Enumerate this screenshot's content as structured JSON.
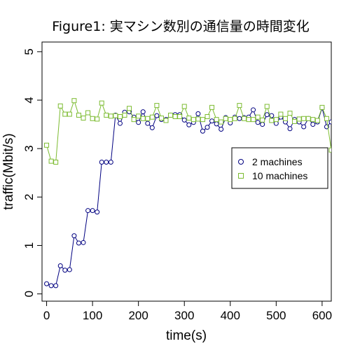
{
  "chart_data": {
    "type": "line",
    "title": "Figure1: 実マシン数別の通信量の時間変化",
    "xlabel": "time(s)",
    "ylabel": "traffic(Mbit/s)",
    "xlim": [
      -10,
      620
    ],
    "ylim": [
      -0.15,
      5.2
    ],
    "xticks": [
      0,
      100,
      200,
      300,
      400,
      500,
      600
    ],
    "yticks": [
      0,
      1,
      2,
      3,
      4,
      5
    ],
    "grid": false,
    "legend_position": "right",
    "x": [
      0,
      10,
      20,
      30,
      40,
      50,
      60,
      70,
      80,
      90,
      100,
      110,
      120,
      130,
      140,
      150,
      160,
      170,
      180,
      190,
      200,
      210,
      220,
      230,
      240,
      250,
      260,
      270,
      280,
      290,
      300,
      310,
      320,
      330,
      340,
      350,
      360,
      370,
      380,
      390,
      400,
      410,
      420,
      430,
      440,
      450,
      460,
      470,
      480,
      490,
      500,
      510,
      520,
      530,
      540,
      550,
      560,
      570,
      580,
      590,
      600,
      610,
      620
    ],
    "series": [
      {
        "name": "2 machines",
        "color": "#000080",
        "marker": "circle",
        "values": [
          0.21,
          0.17,
          0.17,
          0.58,
          0.49,
          0.5,
          1.2,
          1.05,
          1.06,
          1.72,
          1.72,
          1.69,
          2.72,
          2.72,
          2.72,
          3.69,
          3.52,
          3.75,
          3.76,
          3.65,
          3.54,
          3.76,
          3.52,
          3.43,
          3.68,
          3.6,
          3.6,
          3.69,
          3.7,
          3.7,
          3.59,
          3.49,
          3.54,
          3.72,
          3.36,
          3.44,
          3.57,
          3.51,
          3.4,
          3.64,
          3.53,
          3.65,
          3.62,
          3.64,
          3.65,
          3.8,
          3.54,
          3.5,
          3.7,
          3.68,
          3.52,
          3.65,
          3.55,
          3.41,
          3.6,
          3.55,
          3.45,
          3.62,
          3.5,
          3.55,
          3.84,
          3.45,
          3.55
        ]
      },
      {
        "name": "10  machines",
        "color": "#7cbb30",
        "marker": "square",
        "values": [
          3.07,
          2.74,
          2.72,
          3.88,
          3.71,
          3.71,
          3.99,
          3.69,
          3.63,
          3.74,
          3.62,
          3.61,
          3.94,
          3.69,
          3.67,
          3.68,
          3.66,
          3.69,
          3.83,
          3.6,
          3.67,
          3.62,
          3.62,
          3.65,
          3.89,
          3.63,
          3.58,
          3.69,
          3.66,
          3.66,
          3.87,
          3.63,
          3.6,
          3.61,
          3.6,
          3.66,
          3.85,
          3.6,
          3.55,
          3.62,
          3.6,
          3.62,
          3.89,
          3.62,
          3.6,
          3.6,
          3.65,
          3.59,
          3.87,
          3.58,
          3.6,
          3.71,
          3.62,
          3.73,
          3.56,
          3.61,
          3.62,
          3.62,
          3.6,
          3.58,
          3.85,
          3.62,
          2.97
        ]
      }
    ]
  }
}
